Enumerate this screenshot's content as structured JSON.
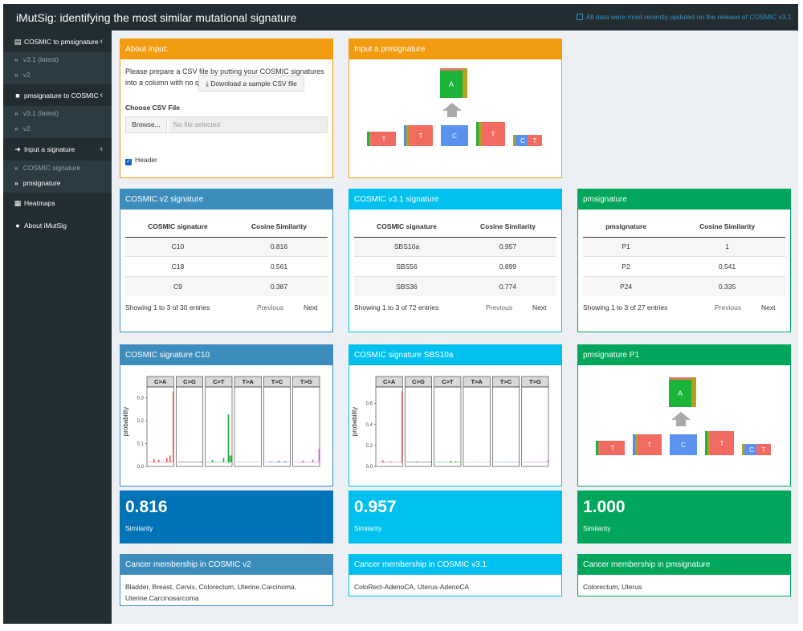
{
  "app": {
    "title": "iMutSig: identifying the most similar mutational signature",
    "update_notice": "All data were most recently updated on the release of COSMIC v3.1."
  },
  "sidebar": {
    "cosmic_to_pm": {
      "label": "COSMIC to pmsignature",
      "items": [
        "v3.1 (latest)",
        "v2"
      ]
    },
    "pm_to_cosmic": {
      "label": "pmsignature to COSMIC",
      "items": [
        "v3.1 (latest)",
        "v2"
      ]
    },
    "input_sig": {
      "label": "Input a signature",
      "items": [
        "COSMIC signature",
        "pmsignature"
      ]
    },
    "heatmaps": "Heatmaps",
    "about": "About iMutSig"
  },
  "about_input": {
    "title": "About input:",
    "text": "Please prepare a CSV file by putting your COSMIC signatures into a column with no quotes.",
    "download": "Download a sample CSV file",
    "choose": "Choose CSV File",
    "browse": "Browse...",
    "no_file": "No file selected",
    "header": "Header"
  },
  "input_pm": {
    "title": "Input a pmsignature",
    "center": "A",
    "bases": [
      "T",
      "T",
      "C",
      "T",
      "C",
      "T"
    ]
  },
  "tables": [
    {
      "title": "COSMIC v2 signature",
      "col1": "COSMIC signature",
      "col2": "Cosine Similarity",
      "rows": [
        [
          "C10",
          "0.816"
        ],
        [
          "C18",
          "0.561"
        ],
        [
          "C9",
          "0.387"
        ]
      ],
      "info": "Showing 1 to 3 of 30 entries",
      "prev": "Previous",
      "next": "Next"
    },
    {
      "title": "COSMIC v3.1 signature",
      "col1": "COSMIC signature",
      "col2": "Cosine Similarity",
      "rows": [
        [
          "SBS10a",
          "0.957"
        ],
        [
          "SBS56",
          "0.899"
        ],
        [
          "SBS36",
          "0.774"
        ]
      ],
      "info": "Showing 1 to 3 of 72 entries",
      "prev": "Previous",
      "next": "Next"
    },
    {
      "title": "pmsignature",
      "col1": "pmsignature",
      "col2": "Cosine Similarity",
      "rows": [
        [
          "P1",
          "1"
        ],
        [
          "P2",
          "0.541"
        ],
        [
          "P24",
          "0.335"
        ]
      ],
      "info": "Showing 1 to 3 of 27 entries",
      "prev": "Previous",
      "next": "Next"
    }
  ],
  "plots": [
    {
      "title": "COSMIC signature C10",
      "ylabel": "probability",
      "ticks": [
        "0.0",
        "0.1",
        "0.2",
        "0.3"
      ],
      "panels": [
        "C>A",
        "C>G",
        "C>T",
        "T>A",
        "T>C",
        "T>G"
      ]
    },
    {
      "title": "COSMIC signature SBS10a",
      "ylabel": "probability",
      "ticks": [
        "0.0",
        "0.2",
        "0.4",
        "0.6"
      ],
      "panels": [
        "C>A",
        "C>G",
        "C>T",
        "T>A",
        "T>C",
        "T>G"
      ]
    },
    {
      "title": "pmsignature P1",
      "center": "A",
      "bases": [
        "T",
        "T",
        "C",
        "T",
        "C",
        "T"
      ]
    }
  ],
  "values": [
    {
      "value": "0.816",
      "label": "Similarity"
    },
    {
      "value": "0.957",
      "label": "Similarity"
    },
    {
      "value": "1.000",
      "label": "Similarity"
    }
  ],
  "membership": [
    {
      "title": "Cancer membership in COSMIC v2",
      "text": "Bladder, Breast, Cervix, Colorectum, Uterine.Carcinoma, Uterine.Carcinosarcoma"
    },
    {
      "title": "Cancer membership in COSMIC v3.1",
      "text": "ColoRect-AdenoCA, Uterus-AdenoCA"
    },
    {
      "title": "Cancer membership in pmsignature",
      "text": "Colorectum, Uterus"
    }
  ],
  "colors": {
    "orange": "#f39c12",
    "blue": "#3c8dbc",
    "aqua": "#00c0ef",
    "green": "#00a65a",
    "dark_blue": "#0073b7",
    "sidebar": "#222d32"
  }
}
